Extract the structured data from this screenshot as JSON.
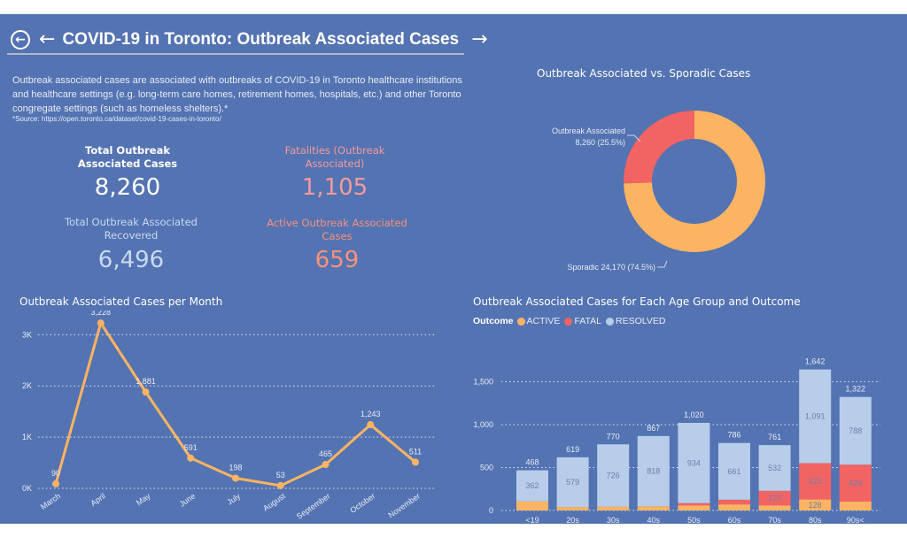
{
  "header": {
    "back_circle_icon": "circle-arrow-left-icon",
    "back_icon": "arrow-left-icon",
    "title": "COVID-19 in Toronto: Outbreak Associated Cases",
    "forward_icon": "arrow-right-icon"
  },
  "description": {
    "text": "Outbreak associated cases are associated with outbreaks of COVID-19 in Toronto healthcare institutions and healthcare settings (e.g. long-term care homes, retirement homes, hospitals, etc.) and other Toronto congregate settings (such as homeless shelters).*",
    "source": "*Source: https://open.toronto.ca/dataset/covid-19-cases-in-toronto/"
  },
  "kpis": [
    {
      "label": "Total Outbreak Associated Cases",
      "value": "8,260",
      "color": "#ffffff",
      "label_color": "#ffffff"
    },
    {
      "label": "Fatalities (Outbreak Associated)",
      "value": "1,105",
      "color": "#f59a9a",
      "label_color": "#f59a9a"
    },
    {
      "label": "Total Outbreak Associated Recovered",
      "value": "6,496",
      "color": "#c9d9f0",
      "label_color": "#c9d9f0"
    },
    {
      "label": "Active Outbreak Associated Cases",
      "value": "659",
      "color": "#f7927a",
      "label_color": "#f7927a"
    }
  ],
  "colors": {
    "background": "#5473b2",
    "active": "#fdb462",
    "fatal": "#f26463",
    "resolved": "#b8cdea",
    "line": "#fdb462"
  },
  "chart_data": [
    {
      "type": "pie",
      "title": "Outbreak Associated vs. Sporadic Cases",
      "donut": true,
      "slices": [
        {
          "label": "Outbreak Associated",
          "value": 8260,
          "percent": "25.5%",
          "display": "8,260 (25.5%)",
          "color": "#f26463"
        },
        {
          "label": "Sporadic",
          "value": 24170,
          "percent": "74.5%",
          "display": "24,170 (74.5%)",
          "color": "#fdb462"
        }
      ]
    },
    {
      "type": "line",
      "title": "Outbreak Associated Cases per Month",
      "categories": [
        "March",
        "April",
        "May",
        "June",
        "July",
        "August",
        "September",
        "October",
        "November"
      ],
      "values": [
        90,
        3228,
        1881,
        591,
        198,
        53,
        465,
        1243,
        511
      ],
      "data_labels": [
        "90",
        "3,228",
        "1,881",
        "591",
        "198",
        "53",
        "465",
        "1,243",
        "511"
      ],
      "yticks": [
        "0K",
        "1K",
        "2K",
        "3K"
      ],
      "ytick_values": [
        0,
        1000,
        2000,
        3000
      ],
      "ylim": [
        0,
        3300
      ],
      "grid": true
    },
    {
      "type": "bar",
      "stacked": true,
      "title": "Outbreak Associated Cases for Each Age Group and Outcome",
      "legend_title": "Outcome",
      "legend_position": "top-left",
      "categories": [
        "<19",
        "20s",
        "30s",
        "40s",
        "50s",
        "60s",
        "70s",
        "80s",
        "90s<"
      ],
      "series": [
        {
          "name": "ACTIVE",
          "values": [
            106,
            40,
            44,
            49,
            58,
            70,
            59,
            128,
            105
          ],
          "labels": [
            "",
            "",
            "",
            "",
            "",
            "",
            "",
            "128",
            ""
          ]
        },
        {
          "name": "FATAL",
          "values": [
            0,
            0,
            0,
            0,
            28,
            55,
            170,
            423,
            429
          ],
          "labels": [
            "",
            "",
            "",
            "",
            "",
            "",
            "170",
            "423",
            "429"
          ]
        },
        {
          "name": "RESOLVED",
          "values": [
            362,
            579,
            726,
            818,
            934,
            661,
            532,
            1091,
            788
          ],
          "labels": [
            "362",
            "579",
            "726",
            "818",
            "934",
            "661",
            "532",
            "1,091",
            "788"
          ]
        }
      ],
      "totals": [
        "468",
        "619",
        "770",
        "867",
        "1,020",
        "786",
        "761",
        "1,642",
        "1,322"
      ],
      "total_values": [
        468,
        619,
        770,
        867,
        1020,
        786,
        761,
        1642,
        1322
      ],
      "yticks": [
        "0",
        "500",
        "1,000",
        "1,500"
      ],
      "ytick_values": [
        0,
        500,
        1000,
        1500
      ],
      "ylim": [
        0,
        1700
      ],
      "grid": true
    }
  ]
}
